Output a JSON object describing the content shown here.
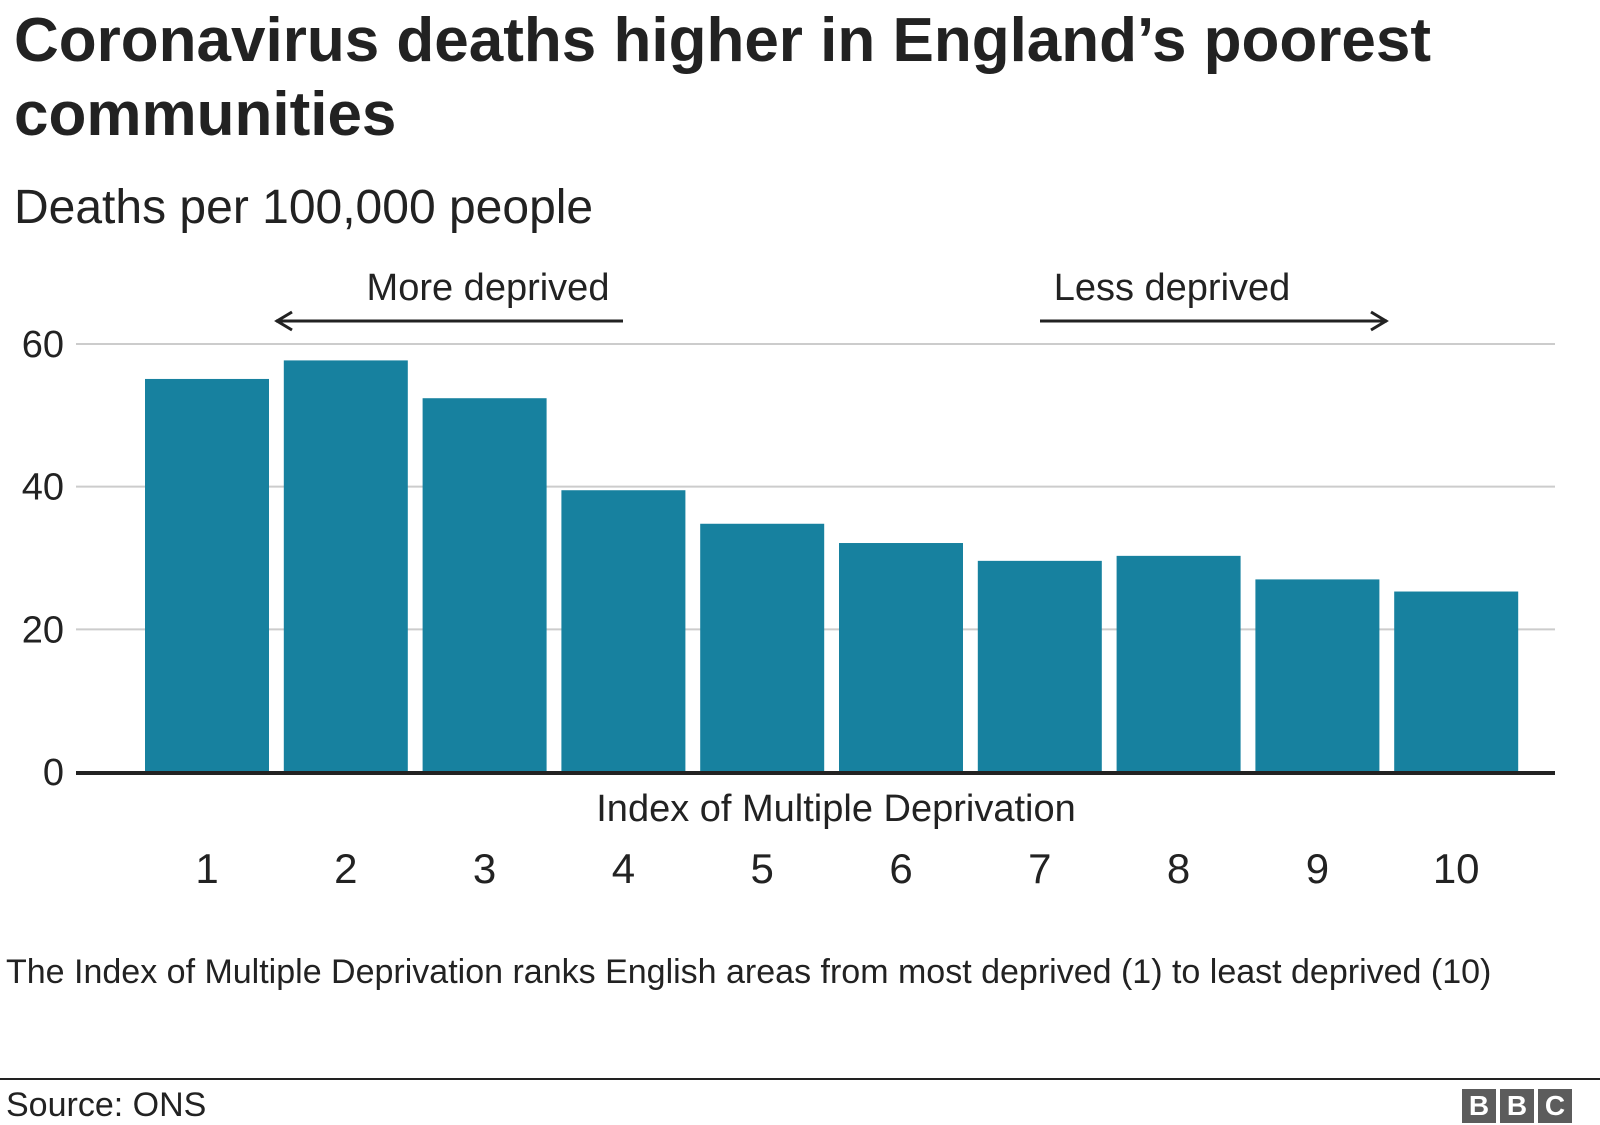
{
  "title": "Coronavirus deaths higher in England’s poorest communities",
  "subtitle": "Deaths per 100,000 people",
  "note": "The Index of Multiple Deprivation ranks English areas from most deprived (1) to least deprived (10)",
  "source": "Source: ONS",
  "logo": {
    "letters": [
      "B",
      "B",
      "C"
    ]
  },
  "colors": {
    "bar": "#17819f",
    "grid": "#cccccc",
    "axis": "#222222",
    "text": "#222222",
    "logo": "#5c5c5c"
  },
  "chart_data": {
    "type": "bar",
    "categories": [
      "1",
      "2",
      "3",
      "4",
      "5",
      "6",
      "7",
      "8",
      "9",
      "10"
    ],
    "values": [
      55.1,
      57.7,
      52.4,
      39.5,
      34.8,
      32.1,
      29.6,
      30.3,
      27.0,
      25.3
    ],
    "title": "Coronavirus deaths higher in England’s poorest communities",
    "subtitle": "Deaths per 100,000 people",
    "xlabel": "Index of Multiple Deprivation",
    "ylabel": "",
    "ylim": [
      0,
      60
    ],
    "yticks": [
      0,
      20,
      40,
      60
    ],
    "grid": true,
    "annotations": {
      "left": "More deprived",
      "right": "Less deprived"
    }
  }
}
